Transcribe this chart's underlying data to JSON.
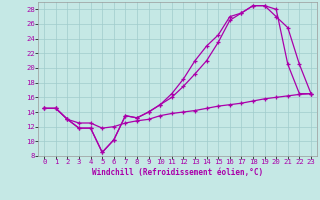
{
  "xlabel": "Windchill (Refroidissement éolien,°C)",
  "bg_color": "#c5e8e5",
  "grid_color": "#a0cccc",
  "line_color": "#aa00aa",
  "xlim_min": -0.5,
  "xlim_max": 23.5,
  "ylim_min": 8,
  "ylim_max": 29,
  "yticks": [
    8,
    10,
    12,
    14,
    16,
    18,
    20,
    22,
    24,
    26,
    28
  ],
  "xticks": [
    0,
    1,
    2,
    3,
    4,
    5,
    6,
    7,
    8,
    9,
    10,
    11,
    12,
    13,
    14,
    15,
    16,
    17,
    18,
    19,
    20,
    21,
    22,
    23
  ],
  "line1_x": [
    0,
    1,
    2,
    3,
    4,
    5,
    6,
    7,
    8,
    9,
    10,
    11,
    12,
    13,
    14,
    15,
    16,
    17,
    18,
    19,
    20,
    21,
    22,
    23
  ],
  "line1_y": [
    14.5,
    14.5,
    13.0,
    11.8,
    11.8,
    8.5,
    10.2,
    13.5,
    13.2,
    14.0,
    15.0,
    16.0,
    17.5,
    19.2,
    21.0,
    23.5,
    26.5,
    27.5,
    28.5,
    28.5,
    28.0,
    20.5,
    16.5,
    16.5
  ],
  "line2_x": [
    0,
    1,
    2,
    3,
    4,
    5,
    6,
    7,
    8,
    9,
    10,
    11,
    12,
    13,
    14,
    15,
    16,
    17,
    18,
    19,
    20,
    21,
    22,
    23
  ],
  "line2_y": [
    14.5,
    14.5,
    13.0,
    11.8,
    11.8,
    8.5,
    10.2,
    13.5,
    13.2,
    14.0,
    15.0,
    16.5,
    18.5,
    21.0,
    23.0,
    24.5,
    27.0,
    27.5,
    28.5,
    28.5,
    27.0,
    25.5,
    20.5,
    16.5
  ],
  "line3_x": [
    0,
    1,
    2,
    3,
    4,
    5,
    6,
    7,
    8,
    9,
    10,
    11,
    12,
    13,
    14,
    15,
    16,
    17,
    18,
    19,
    20,
    21,
    22,
    23
  ],
  "line3_y": [
    14.5,
    14.5,
    13.0,
    12.5,
    12.5,
    11.8,
    12.0,
    12.5,
    12.8,
    13.0,
    13.5,
    13.8,
    14.0,
    14.2,
    14.5,
    14.8,
    15.0,
    15.2,
    15.5,
    15.8,
    16.0,
    16.2,
    16.4,
    16.5
  ],
  "xlabel_fontsize": 5.5,
  "tick_fontsize": 5.2,
  "lw": 0.9,
  "marker_size": 3.5
}
